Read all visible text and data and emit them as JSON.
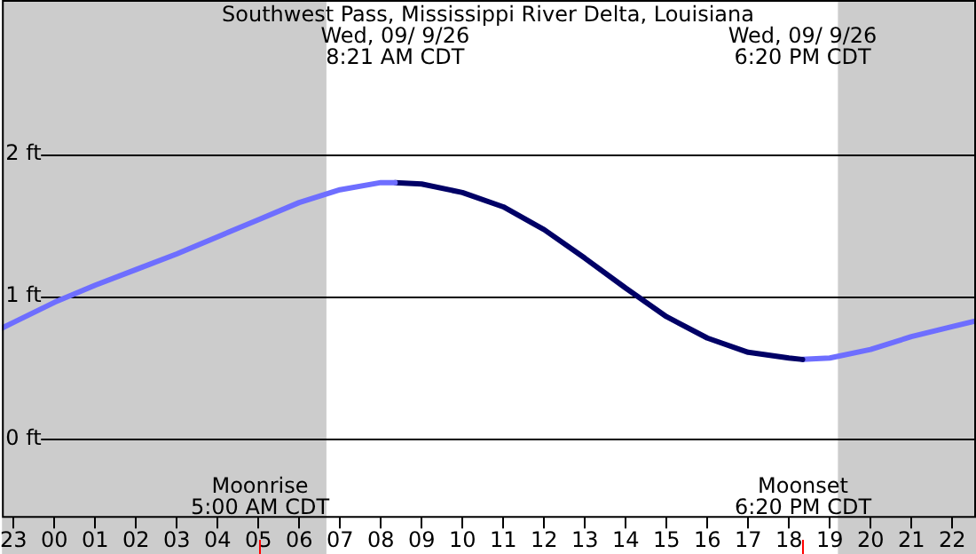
{
  "chart_data": {
    "type": "line",
    "title": "Southwest Pass, Mississippi River Delta, Louisiana",
    "xlim": [
      "--09-08T22:43",
      "--09-09T22:35"
    ],
    "xticks": [
      {
        "value": "--09-08T23:00",
        "label": "23"
      },
      {
        "value": "--09-09T00:00",
        "label": "00"
      },
      {
        "value": "--09-09T01:00",
        "label": "01"
      },
      {
        "value": "--09-09T02:00",
        "label": "02"
      },
      {
        "value": "--09-09T03:00",
        "label": "03"
      },
      {
        "value": "--09-09T04:00",
        "label": "04"
      },
      {
        "value": "--09-09T05:00",
        "label": "05"
      },
      {
        "value": "--09-09T06:00",
        "label": "06"
      },
      {
        "value": "--09-09T07:00",
        "label": "07"
      },
      {
        "value": "--09-09T08:00",
        "label": "08"
      },
      {
        "value": "--09-09T09:00",
        "label": "09"
      },
      {
        "value": "--09-09T10:00",
        "label": "10"
      },
      {
        "value": "--09-09T11:00",
        "label": "11"
      },
      {
        "value": "--09-09T12:00",
        "label": "12"
      },
      {
        "value": "--09-09T13:00",
        "label": "13"
      },
      {
        "value": "--09-09T14:00",
        "label": "14"
      },
      {
        "value": "--09-09T15:00",
        "label": "15"
      },
      {
        "value": "--09-09T16:00",
        "label": "16"
      },
      {
        "value": "--09-09T17:00",
        "label": "17"
      },
      {
        "value": "--09-09T18:00",
        "label": "18"
      },
      {
        "value": "--09-09T19:00",
        "label": "19"
      },
      {
        "value": "--09-09T20:00",
        "label": "20"
      },
      {
        "value": "--09-09T21:00",
        "label": "21"
      },
      {
        "value": "--09-09T22:00",
        "label": "22"
      }
    ],
    "ylim": [
      -0.55,
      3.08
    ],
    "yticks": [
      {
        "value": 0,
        "label": "0 ft"
      },
      {
        "value": 1,
        "label": "1 ft"
      },
      {
        "value": 2,
        "label": "2 ft"
      }
    ],
    "grid": "y",
    "legend": false,
    "marker": "none",
    "series": [
      {
        "color": "#6e6eff",
        "x": [
          "--09-08T22:43",
          "--09-08T23:00",
          "--09-09T00:00",
          "--09-09T01:00",
          "--09-09T02:00",
          "--09-09T03:00",
          "--09-09T04:00",
          "--09-09T05:00",
          "--09-09T06:00",
          "--09-09T07:00",
          "--09-09T08:00",
          "--09-09T08:21"
        ],
        "values": [
          0.78,
          0.82,
          0.96,
          1.08,
          1.19,
          1.3,
          1.42,
          1.54,
          1.66,
          1.75,
          1.8,
          1.8
        ]
      },
      {
        "color": "#000066",
        "x": [
          "--09-09T08:21",
          "--09-09T09:00",
          "--09-09T10:00",
          "--09-09T11:00",
          "--09-09T12:00",
          "--09-09T13:00",
          "--09-09T14:00",
          "--09-09T15:00",
          "--09-09T16:00",
          "--09-09T17:00",
          "--09-09T18:00",
          "--09-09T18:20"
        ],
        "values": [
          1.8,
          1.79,
          1.73,
          1.63,
          1.47,
          1.27,
          1.06,
          0.86,
          0.71,
          0.61,
          0.57,
          0.56
        ]
      },
      {
        "color": "#6e6eff",
        "x": [
          "--09-09T18:20",
          "--09-09T19:00",
          "--09-09T20:00",
          "--09-09T21:00",
          "--09-09T22:00",
          "--09-09T22:35"
        ],
        "values": [
          0.56,
          0.57,
          0.63,
          0.72,
          0.79,
          0.83
        ]
      }
    ],
    "bands": [
      {
        "axis": "x",
        "from": "--09-08T22:43",
        "to": "--09-09T06:40",
        "color": "#cccccc"
      },
      {
        "axis": "x",
        "from": "--09-09T19:12",
        "to": "--09-09T22:35",
        "color": "#cccccc"
      }
    ],
    "ref_lines": [
      {
        "axis": "x",
        "value": "--09-09T05:00",
        "label": "Moonrise\n5:00 AM CDT",
        "color": "#ff0000"
      },
      {
        "axis": "x",
        "value": "--09-09T18:20",
        "label": "Moonset\n6:20 PM CDT",
        "color": "#ff0000"
      }
    ],
    "annotations": [
      "Wed, 09/ 9/26\n8:21 AM CDT",
      "Wed, 09/ 9/26\n6:20 PM CDT"
    ]
  }
}
